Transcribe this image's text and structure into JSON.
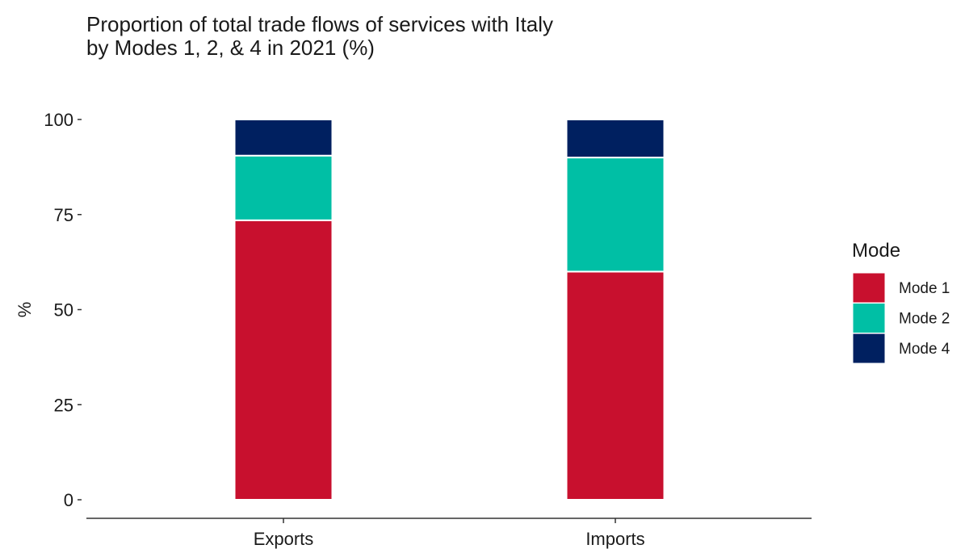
{
  "chart_data": {
    "type": "bar",
    "stacked": true,
    "title_lines": [
      "Proportion of total trade flows of services with Italy",
      "by Modes 1, 2, & 4 in 2021 (%)"
    ],
    "xlabel": "",
    "ylabel": "%",
    "ylim": [
      0,
      100
    ],
    "yticks": [
      0,
      25,
      50,
      75,
      100
    ],
    "categories": [
      "Exports",
      "Imports"
    ],
    "series": [
      {
        "name": "Mode 1",
        "color": "#c8102e",
        "values": [
          73.5,
          60.0
        ]
      },
      {
        "name": "Mode 2",
        "color": "#00bfa5",
        "values": [
          17.0,
          30.0
        ]
      },
      {
        "name": "Mode 4",
        "color": "#002060",
        "values": [
          9.5,
          10.0
        ]
      }
    ],
    "legend": {
      "title": "Mode",
      "position": "right"
    },
    "grid": false
  }
}
